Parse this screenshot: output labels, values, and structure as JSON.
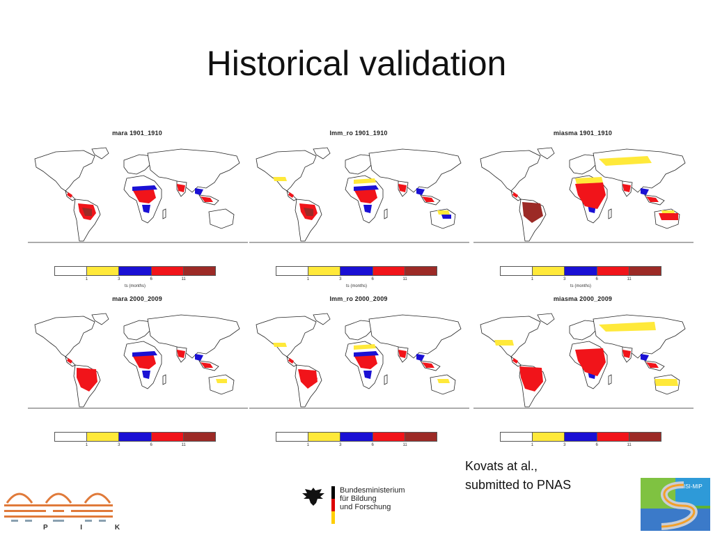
{
  "title": "Historical validation",
  "colors": {
    "white": "#ffffff",
    "yellow": "#ffe93a",
    "blue": "#1a10d4",
    "red": "#f1141a",
    "darkred": "#9c2a26",
    "land_outline": "#222222"
  },
  "colorbar": {
    "segments": [
      "white",
      "yellow",
      "blue",
      "red",
      "darkred"
    ],
    "tick_labels": [
      "1",
      "3",
      "6",
      "11"
    ],
    "unit_label": "ts (months)"
  },
  "panels": [
    {
      "title": "mara 1901_1910",
      "show_unit": true
    },
    {
      "title": "lmm_ro 1901_1910",
      "show_unit": true
    },
    {
      "title": "miasma 1901_1910",
      "show_unit": true
    },
    {
      "title": "mara 2000_2009",
      "show_unit": false
    },
    {
      "title": "lmm_ro 2000_2009",
      "show_unit": false
    },
    {
      "title": "miasma 2000_2009",
      "show_unit": false
    }
  ],
  "citation": {
    "line1": "Kovats at al.,",
    "line2": "submitted to PNAS"
  },
  "logos": {
    "pik": "P I K",
    "bmbf": "Bundesministerium\nfür Bildung\nund Forschung",
    "isi": "ISI-MIP"
  }
}
